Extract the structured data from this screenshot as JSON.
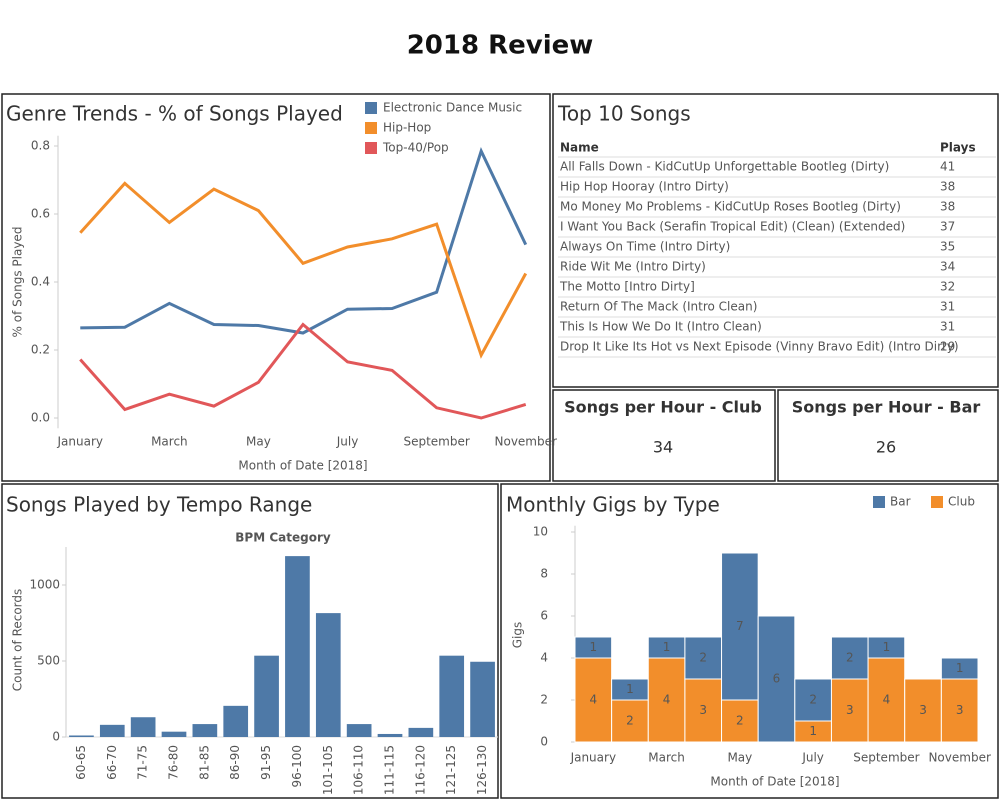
{
  "title": "2018 Review",
  "chart_data": [
    {
      "type": "line",
      "title": "Genre Trends - % of Songs Played",
      "categories": [
        "January",
        null,
        "March",
        null,
        "May",
        null,
        "July",
        null,
        "September",
        null,
        "November"
      ],
      "series": [
        {
          "name": "Electronic Dance Music",
          "color": "#4e79a7",
          "values": [
            0.265,
            0.267,
            0.337,
            0.275,
            0.272,
            0.25,
            0.32,
            0.322,
            0.37,
            0.785,
            0.51
          ]
        },
        {
          "name": "Hip-Hop",
          "color": "#f28e2b",
          "values": [
            0.545,
            0.69,
            0.575,
            0.673,
            0.61,
            0.455,
            0.503,
            0.527,
            0.57,
            0.185,
            0.425
          ]
        },
        {
          "name": "Top-40/Pop",
          "color": "#e15759",
          "values": [
            0.172,
            0.025,
            0.07,
            0.035,
            0.105,
            0.275,
            0.165,
            0.14,
            0.03,
            0.0,
            0.04
          ]
        }
      ],
      "ylim": [
        -0.03,
        0.83
      ],
      "yticks": [
        {
          "value": 0,
          "label": "0.0"
        },
        0.2,
        0.4,
        0.6,
        0.8
      ],
      "xlabel": "Month of Date [2018]",
      "ylabel": "% of Songs Played",
      "legend": "top-right"
    },
    {
      "type": "bar",
      "title": "Songs Played by Tempo Range",
      "header": "BPM Category",
      "categories": [
        "60-65",
        "66-70",
        "71-75",
        "76-80",
        "81-85",
        "86-90",
        "91-95",
        "96-100",
        "101-105",
        "106-110",
        "111-115",
        "116-120",
        "121-125",
        "126-130"
      ],
      "values": [
        10,
        80,
        130,
        35,
        85,
        205,
        535,
        1190,
        815,
        85,
        20,
        60,
        535,
        495
      ],
      "color": "#4e79a7",
      "ylim": [
        0,
        1250
      ],
      "yticks": [
        0,
        500,
        1000
      ],
      "ylabel": "Count of Records"
    },
    {
      "type": "bar",
      "stacked": true,
      "title": "Monthly Gigs by Type",
      "categories": [
        "January",
        null,
        "March",
        null,
        "May",
        null,
        "July",
        null,
        "September",
        null,
        "November"
      ],
      "series": [
        {
          "name": "Club",
          "color": "#f28e2b",
          "values": [
            4,
            2,
            4,
            3,
            2,
            null,
            1,
            3,
            4,
            3,
            3
          ]
        },
        {
          "name": "Bar",
          "color": "#4e79a7",
          "values": [
            1,
            1,
            1,
            2,
            7,
            6,
            2,
            2,
            1,
            null,
            1
          ]
        }
      ],
      "legend_order": [
        "Bar",
        "Club"
      ],
      "ylim": [
        0,
        10.3
      ],
      "yticks": [
        0,
        2,
        4,
        6,
        8,
        10
      ],
      "xlabel": "Month of Date [2018]",
      "ylabel": "Gigs",
      "legend": "top-right"
    }
  ],
  "top_songs": {
    "title": "Top 10 Songs",
    "columns": [
      "Name",
      "Plays"
    ],
    "rows": [
      [
        "All Falls Down - KidCutUp Unforgettable Bootleg (Dirty)",
        41
      ],
      [
        "Hip Hop Hooray (Intro Dirty)",
        38
      ],
      [
        "Mo Money Mo Problems - KidCutUp Roses Bootleg (Dirty)",
        38
      ],
      [
        "I Want You Back (Serafin Tropical Edit) (Clean) (Extended)",
        37
      ],
      [
        "Always On Time (Intro Dirty)",
        35
      ],
      [
        "Ride Wit Me (Intro Dirty)",
        34
      ],
      [
        "The Motto [Intro Dirty]",
        32
      ],
      [
        "Return Of The Mack (Intro Clean)",
        31
      ],
      [
        "This Is How We Do It (Intro Clean)",
        31
      ],
      [
        "Drop It Like Its Hot vs Next Episode (Vinny Bravo Edit) (Intro Dirty)",
        29
      ]
    ]
  },
  "kpis": [
    {
      "title": "Songs per Hour - Club",
      "value": 34
    },
    {
      "title": "Songs per Hour - Bar",
      "value": 26
    }
  ]
}
